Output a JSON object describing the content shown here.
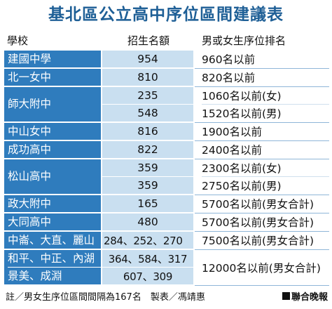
{
  "title": "基北區公立高中序位區間建議表",
  "headers": {
    "school": "學校",
    "quota": "招生名額",
    "rank": "男或女生序位排名"
  },
  "rows": [
    {
      "school": [
        "建國中學"
      ],
      "quota": [
        "954"
      ],
      "rank": [
        "960名以前"
      ]
    },
    {
      "school": [
        "北一女中"
      ],
      "quota": [
        "810"
      ],
      "rank": [
        "820名以前"
      ]
    },
    {
      "school": [
        "師大附中"
      ],
      "quota": [
        "235",
        "548"
      ],
      "rank": [
        "1060名以前(女)",
        "1520名以前(男)"
      ]
    },
    {
      "school": [
        "中山女中"
      ],
      "quota": [
        "816"
      ],
      "rank": [
        "1900名以前"
      ]
    },
    {
      "school": [
        "成功高中"
      ],
      "quota": [
        "822"
      ],
      "rank": [
        "2400名以前"
      ]
    },
    {
      "school": [
        "松山高中"
      ],
      "quota": [
        "359",
        "359"
      ],
      "rank": [
        "2300名以前(女)",
        "2750名以前(男)"
      ]
    },
    {
      "school": [
        "政大附中"
      ],
      "quota": [
        "165"
      ],
      "rank": [
        "5700名以前(男女合計)"
      ]
    },
    {
      "school": [
        "大同高中"
      ],
      "quota": [
        "480"
      ],
      "rank": [
        "5700名以前(男女合計)"
      ]
    },
    {
      "school": [
        "中崙、大直、麗山"
      ],
      "quota": [
        "284、252、270"
      ],
      "rank": [
        "7500名以前(男女合計)"
      ]
    },
    {
      "school": [
        "和平、中正、內湖",
        "景美、成淵"
      ],
      "quota": [
        "364、584、317",
        "607、309"
      ],
      "rank": [
        "12000名以前(男女合計)"
      ]
    }
  ],
  "footer": {
    "note": "註／男女生序位區間間隔為167名　製表／馮靖惠",
    "brand": "聯合晚報"
  },
  "colors": {
    "title": "#1e5f96",
    "school_bg": "#2f7cbd",
    "quota_bg": "#c9dff0"
  }
}
